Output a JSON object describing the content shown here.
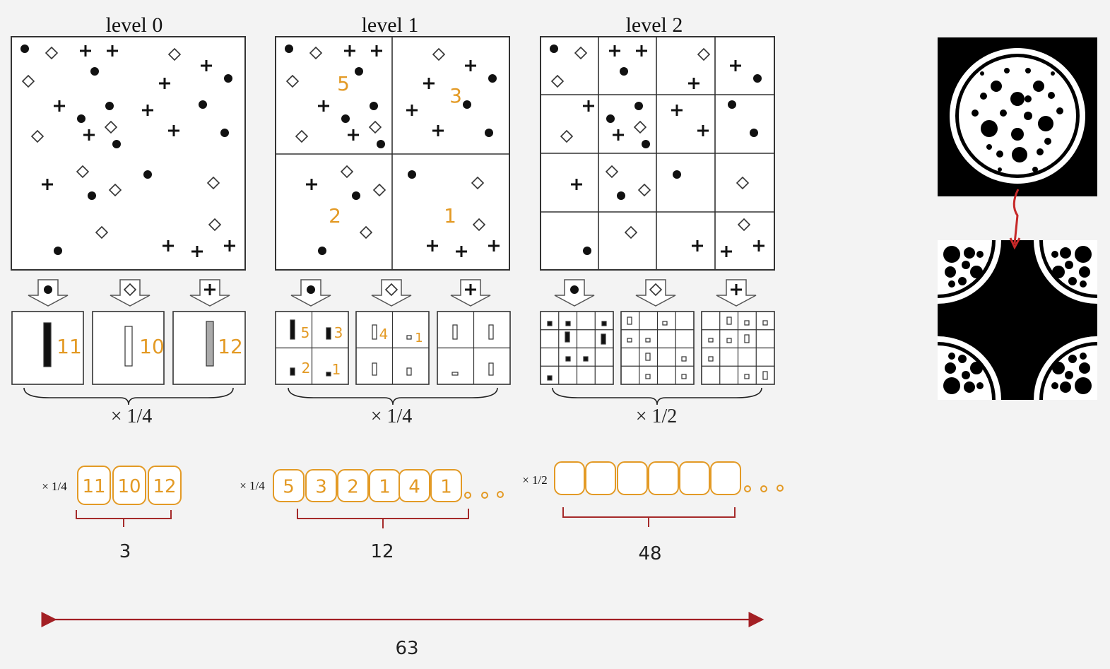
{
  "levels": [
    {
      "title": "level 0",
      "factor": "× 1/4",
      "cell_counts": [
        "5",
        "3",
        "2",
        "1"
      ],
      "histogram_counts": [
        "11",
        "10",
        "12"
      ]
    },
    {
      "title": "level 1",
      "factor": "× 1/4",
      "cell_counts": [
        "5",
        "3",
        "2",
        "1"
      ],
      "histogram_labels": [
        "5",
        "3",
        "2",
        "1",
        "4",
        "1"
      ]
    },
    {
      "title": "level 2",
      "factor": "× 1/2"
    }
  ],
  "level0_hist": [
    "11",
    "10",
    "12"
  ],
  "level1_cells": [
    "5",
    "3",
    "2",
    "1"
  ],
  "level1_hist_black": [
    "5",
    "3",
    "2",
    "1"
  ],
  "level1_hist_white": [
    "4",
    "1"
  ],
  "feature_vectors": [
    {
      "weight": "× 1/4",
      "boxes": [
        "11",
        "10",
        "12"
      ],
      "dims": "3"
    },
    {
      "weight": "× 1/4",
      "boxes": [
        "5",
        "3",
        "2",
        "1",
        "4",
        "1"
      ],
      "dims": "12"
    },
    {
      "weight": "× 1/2",
      "boxes": [
        "",
        "",
        "",
        "",
        "",
        ""
      ],
      "dims": "48"
    }
  ],
  "total_dims": "63",
  "colors": {
    "annotation": "#e39a25",
    "bracket": "#a52a2a",
    "arrow": "#a31f24"
  },
  "icons": [
    "dot-icon",
    "diamond-icon",
    "plus-icon",
    "down-arrow-icon",
    "double-arrow-icon"
  ]
}
